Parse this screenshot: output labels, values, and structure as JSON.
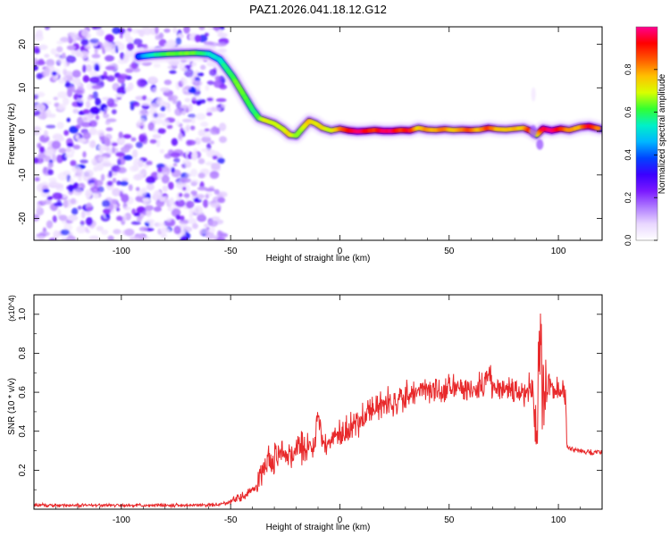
{
  "title": "PAZ1.2026.041.18.12.G12",
  "colormap": [
    "#ffffff",
    "#e9d7ff",
    "#b07cff",
    "#7a19ff",
    "#3b00ff",
    "#0044ff",
    "#00b7ff",
    "#00f0c8",
    "#32ff32",
    "#d8ff00",
    "#ffc000",
    "#ff5a00",
    "#ff0000",
    "#ff0090"
  ],
  "line_color": "#e8292b",
  "chart_data": [
    {
      "type": "heatmap",
      "title": "PAZ1.2026.041.18.12.G12",
      "xlabel": "Height of straight line (km)",
      "ylabel": "Frequency (Hz)",
      "xlim": [
        -140,
        120
      ],
      "ylim": [
        -25,
        24
      ],
      "xticks": [
        -100,
        -50,
        0,
        50,
        100
      ],
      "xtick_labels": [
        "-100",
        "-50",
        "0",
        "50",
        "100"
      ],
      "yticks": [
        -20,
        -10,
        0,
        10,
        20
      ],
      "ytick_labels": [
        "-20",
        "-10",
        "0",
        "10",
        "20"
      ],
      "colorbar": {
        "label": "Normalized spectral amplitude",
        "range": [
          0,
          1
        ],
        "ticks": [
          0.0,
          0.2,
          0.4,
          0.6,
          0.8
        ],
        "tick_labels": [
          "0.0",
          "0.2",
          "0.4",
          "0.6",
          "0.8"
        ]
      },
      "noise_region_x": [
        -140,
        -53
      ],
      "noise_region_y": [
        -25,
        24
      ],
      "ridge": [
        {
          "x": -92,
          "y": 17.2,
          "a": 0.05
        },
        {
          "x": -85,
          "y": 17.6,
          "a": 0.3
        },
        {
          "x": -78,
          "y": 17.8,
          "a": 0.42
        },
        {
          "x": -72,
          "y": 17.9,
          "a": 0.45
        },
        {
          "x": -66,
          "y": 18.0,
          "a": 0.42
        },
        {
          "x": -60,
          "y": 17.8,
          "a": 0.3
        },
        {
          "x": -55,
          "y": 16.5,
          "a": 0.25
        },
        {
          "x": -52,
          "y": 14.5,
          "a": 0.35
        },
        {
          "x": -49,
          "y": 12.5,
          "a": 0.4
        },
        {
          "x": -46,
          "y": 10.0,
          "a": 0.45
        },
        {
          "x": -43,
          "y": 7.5,
          "a": 0.4
        },
        {
          "x": -40,
          "y": 5.0,
          "a": 0.35
        },
        {
          "x": -37,
          "y": 3.0,
          "a": 0.42
        },
        {
          "x": -34,
          "y": 2.5,
          "a": 0.55
        },
        {
          "x": -30,
          "y": 1.8,
          "a": 0.5
        },
        {
          "x": -26,
          "y": 0.5,
          "a": 0.52
        },
        {
          "x": -23,
          "y": -0.8,
          "a": 0.6
        },
        {
          "x": -20,
          "y": -1.0,
          "a": 0.45
        },
        {
          "x": -17,
          "y": 0.8,
          "a": 0.5
        },
        {
          "x": -14,
          "y": 2.4,
          "a": 0.65
        },
        {
          "x": -11,
          "y": 1.8,
          "a": 0.55
        },
        {
          "x": -8,
          "y": 0.8,
          "a": 0.6
        },
        {
          "x": -4,
          "y": 0.2,
          "a": 0.5
        },
        {
          "x": 0,
          "y": 0.6,
          "a": 0.7
        },
        {
          "x": 4,
          "y": 0.2,
          "a": 0.85
        },
        {
          "x": 8,
          "y": 0.0,
          "a": 0.98
        },
        {
          "x": 12,
          "y": 0.1,
          "a": 0.9
        },
        {
          "x": 16,
          "y": 0.3,
          "a": 0.8
        },
        {
          "x": 20,
          "y": 0.1,
          "a": 0.95
        },
        {
          "x": 24,
          "y": 0.1,
          "a": 0.97
        },
        {
          "x": 28,
          "y": 0.3,
          "a": 0.8
        },
        {
          "x": 32,
          "y": 0.2,
          "a": 0.9
        },
        {
          "x": 36,
          "y": 0.8,
          "a": 0.6
        },
        {
          "x": 40,
          "y": 0.4,
          "a": 0.7
        },
        {
          "x": 44,
          "y": 0.3,
          "a": 0.65
        },
        {
          "x": 48,
          "y": 0.5,
          "a": 0.75
        },
        {
          "x": 52,
          "y": 0.3,
          "a": 0.6
        },
        {
          "x": 56,
          "y": 0.4,
          "a": 0.7
        },
        {
          "x": 60,
          "y": 0.3,
          "a": 0.8
        },
        {
          "x": 64,
          "y": 0.4,
          "a": 0.62
        },
        {
          "x": 68,
          "y": 0.8,
          "a": 0.85
        },
        {
          "x": 72,
          "y": 0.5,
          "a": 0.65
        },
        {
          "x": 76,
          "y": 0.4,
          "a": 0.62
        },
        {
          "x": 80,
          "y": 0.6,
          "a": 0.65
        },
        {
          "x": 84,
          "y": 0.8,
          "a": 0.62
        },
        {
          "x": 87,
          "y": 0.2,
          "a": 0.85
        },
        {
          "x": 90,
          "y": -0.8,
          "a": 0.5
        },
        {
          "x": 93,
          "y": 0.6,
          "a": 0.92
        },
        {
          "x": 97,
          "y": 0.2,
          "a": 0.98
        },
        {
          "x": 101,
          "y": 0.6,
          "a": 0.85
        },
        {
          "x": 105,
          "y": 0.3,
          "a": 0.7
        },
        {
          "x": 110,
          "y": 1.0,
          "a": 0.65
        },
        {
          "x": 114,
          "y": 1.2,
          "a": 0.92
        },
        {
          "x": 119,
          "y": 0.6,
          "a": 0.7
        }
      ]
    },
    {
      "type": "line",
      "xlabel": "Height of straight line (km)",
      "ylabel": "SNR (10 * v/v)",
      "y_scale_label": "(x10^4)",
      "xlim": [
        -140,
        120
      ],
      "ylim": [
        0,
        1.1
      ],
      "xticks": [
        -100,
        -50,
        0,
        50,
        100
      ],
      "xtick_labels": [
        "-100",
        "-50",
        "0",
        "50",
        "100"
      ],
      "yticks": [
        0.2,
        0.4,
        0.6,
        0.8,
        1.0
      ],
      "ytick_labels": [
        "0.2",
        "0.4",
        "0.6",
        "0.8",
        "1.0"
      ],
      "series": [
        {
          "name": "SNR",
          "x": [
            -140,
            -120,
            -100,
            -80,
            -60,
            -52,
            -48,
            -44,
            -41,
            -38,
            -35,
            -32,
            -28,
            -24,
            -20,
            -16,
            -12,
            -10,
            -8,
            -4,
            0,
            5,
            10,
            15,
            20,
            25,
            30,
            35,
            40,
            45,
            50,
            55,
            60,
            65,
            68,
            70,
            75,
            80,
            85,
            88,
            90,
            91,
            92,
            93,
            94,
            96,
            100,
            103,
            104,
            105,
            110,
            115,
            120
          ],
          "y": [
            0.02,
            0.02,
            0.02,
            0.02,
            0.02,
            0.03,
            0.05,
            0.07,
            0.09,
            0.12,
            0.2,
            0.24,
            0.27,
            0.29,
            0.31,
            0.32,
            0.33,
            0.5,
            0.34,
            0.35,
            0.37,
            0.42,
            0.46,
            0.5,
            0.53,
            0.56,
            0.58,
            0.6,
            0.61,
            0.61,
            0.62,
            0.62,
            0.62,
            0.63,
            0.7,
            0.63,
            0.62,
            0.6,
            0.6,
            0.65,
            0.3,
            0.75,
            0.95,
            0.5,
            0.6,
            0.62,
            0.6,
            0.6,
            0.32,
            0.31,
            0.3,
            0.29,
            0.29
          ]
        }
      ]
    }
  ]
}
